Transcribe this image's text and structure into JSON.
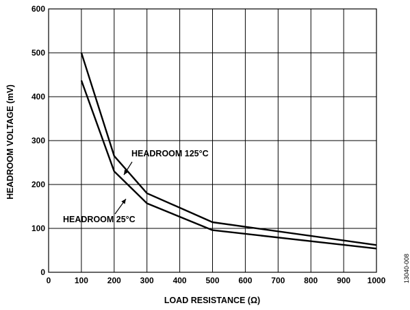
{
  "chart_data": {
    "type": "line",
    "title": "",
    "xlabel": "LOAD RESISTANCE (Ω)",
    "ylabel": "HEADROOM VOLTAGE (mV)",
    "xlim": [
      0,
      1000
    ],
    "ylim": [
      0,
      600
    ],
    "xticks": [
      0,
      100,
      200,
      300,
      400,
      500,
      600,
      700,
      800,
      900,
      1000
    ],
    "yticks": [
      0,
      100,
      200,
      300,
      400,
      500,
      600
    ],
    "grid": true,
    "legend": "none",
    "series": [
      {
        "name": "HEADROOM 125°C",
        "x": [
          100,
          200,
          300,
          500,
          1000
        ],
        "y": [
          500,
          265,
          180,
          114,
          62
        ]
      },
      {
        "name": "HEADROOM 25°C",
        "x": [
          100,
          200,
          300,
          500,
          1000
        ],
        "y": [
          437,
          230,
          157,
          96,
          54
        ]
      }
    ],
    "annotations": [
      {
        "text": "HEADROOM 125°C",
        "series": 0,
        "x": 262,
        "y": 196
      },
      {
        "text": "HEADROOM 25°C",
        "series": 1,
        "x": 255,
        "y": 190
      }
    ],
    "figure_id": "13040-008"
  }
}
